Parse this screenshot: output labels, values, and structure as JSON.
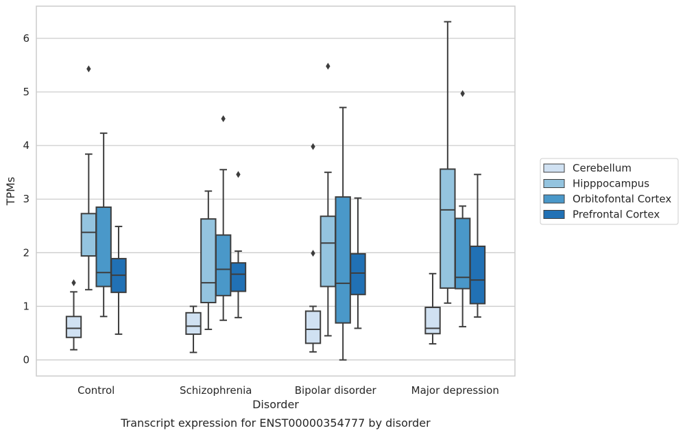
{
  "chart_data": {
    "type": "box",
    "caption": "Transcript expression for ENST00000354777 by disorder",
    "xlabel": "Disorder",
    "ylabel": "TPMs",
    "ylim": [
      -0.3,
      6.6
    ],
    "yticks": [
      0,
      1,
      2,
      3,
      4,
      5,
      6
    ],
    "grid": "horizontal",
    "legend_position": "right",
    "categories": [
      "Control",
      "Schizophrenia",
      "Bipolar disorder",
      "Major depression"
    ],
    "series": [
      {
        "name": "Cerebellum",
        "color": "#d0e1f2",
        "boxes": [
          {
            "whisker_low": 0.19,
            "q1": 0.42,
            "median": 0.59,
            "q3": 0.81,
            "whisker_high": 1.27,
            "outliers": [
              1.44
            ]
          },
          {
            "whisker_low": 0.14,
            "q1": 0.48,
            "median": 0.63,
            "q3": 0.88,
            "whisker_high": 1.0,
            "outliers": []
          },
          {
            "whisker_low": 0.15,
            "q1": 0.31,
            "median": 0.57,
            "q3": 0.91,
            "whisker_high": 1.0,
            "outliers": [
              1.99,
              3.98
            ]
          },
          {
            "whisker_low": 0.3,
            "q1": 0.49,
            "median": 0.59,
            "q3": 0.98,
            "whisker_high": 1.61,
            "outliers": []
          }
        ]
      },
      {
        "name": "Hipppocampus",
        "color": "#94c4df",
        "boxes": [
          {
            "whisker_low": 1.31,
            "q1": 1.94,
            "median": 2.38,
            "q3": 2.73,
            "whisker_high": 3.84,
            "outliers": [
              5.43
            ]
          },
          {
            "whisker_low": 0.57,
            "q1": 1.07,
            "median": 1.44,
            "q3": 2.63,
            "whisker_high": 3.15,
            "outliers": []
          },
          {
            "whisker_low": 0.45,
            "q1": 1.37,
            "median": 2.18,
            "q3": 2.68,
            "whisker_high": 3.5,
            "outliers": [
              5.48
            ]
          },
          {
            "whisker_low": 1.06,
            "q1": 1.34,
            "median": 2.8,
            "q3": 3.56,
            "whisker_high": 6.31,
            "outliers": []
          }
        ]
      },
      {
        "name": "Orbitofontal Cortex",
        "color": "#4a98c9",
        "boxes": [
          {
            "whisker_low": 0.81,
            "q1": 1.37,
            "median": 1.63,
            "q3": 2.85,
            "whisker_high": 4.23,
            "outliers": []
          },
          {
            "whisker_low": 0.74,
            "q1": 1.2,
            "median": 1.69,
            "q3": 2.33,
            "whisker_high": 3.55,
            "outliers": [
              4.5
            ]
          },
          {
            "whisker_low": 0.0,
            "q1": 0.69,
            "median": 1.43,
            "q3": 3.04,
            "whisker_high": 4.71,
            "outliers": []
          },
          {
            "whisker_low": 0.62,
            "q1": 1.33,
            "median": 1.54,
            "q3": 2.64,
            "whisker_high": 2.87,
            "outliers": [
              4.97
            ]
          }
        ]
      },
      {
        "name": "Prefrontal Cortex",
        "color": "#2171b5",
        "boxes": [
          {
            "whisker_low": 0.48,
            "q1": 1.26,
            "median": 1.58,
            "q3": 1.89,
            "whisker_high": 2.49,
            "outliers": []
          },
          {
            "whisker_low": 0.79,
            "q1": 1.28,
            "median": 1.6,
            "q3": 1.81,
            "whisker_high": 2.03,
            "outliers": [
              3.46
            ]
          },
          {
            "whisker_low": 0.59,
            "q1": 1.22,
            "median": 1.62,
            "q3": 1.98,
            "whisker_high": 3.02,
            "outliers": []
          },
          {
            "whisker_low": 0.8,
            "q1": 1.05,
            "median": 1.49,
            "q3": 2.12,
            "whisker_high": 3.46,
            "outliers": []
          }
        ]
      }
    ]
  }
}
